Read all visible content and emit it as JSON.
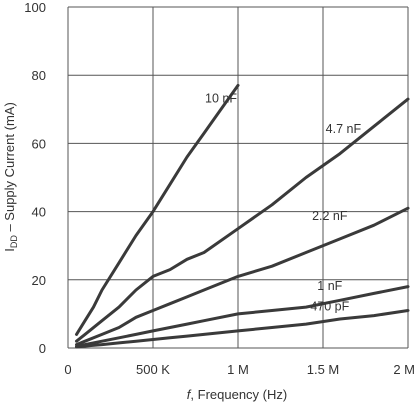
{
  "chart_data": {
    "type": "line",
    "xlabel_italic": "f",
    "xlabel_rest": ", Frequency (Hz)",
    "ylabel_main": "I",
    "ylabel_sub": "DD",
    "ylabel_rest": " – Supply Current (mA)",
    "xlim": [
      0,
      2000000
    ],
    "ylim": [
      0,
      100
    ],
    "x_ticks": [
      {
        "value": 0,
        "label": "0"
      },
      {
        "value": 500000,
        "label": "500 K"
      },
      {
        "value": 1000000,
        "label": "1 M"
      },
      {
        "value": 1500000,
        "label": "1.5 M"
      },
      {
        "value": 2000000,
        "label": "2 M"
      }
    ],
    "y_ticks": [
      {
        "value": 0,
        "label": "0"
      },
      {
        "value": 20,
        "label": "20"
      },
      {
        "value": 40,
        "label": "40"
      },
      {
        "value": 60,
        "label": "60"
      },
      {
        "value": 80,
        "label": "80"
      },
      {
        "value": 100,
        "label": "100"
      }
    ],
    "grid": true,
    "series": [
      {
        "name": "10 nF",
        "x": [
          50000,
          100000,
          150000,
          200000,
          300000,
          400000,
          500000,
          600000,
          700000,
          800000,
          900000,
          1000000
        ],
        "y": [
          4,
          8,
          12,
          17,
          25,
          33,
          40,
          48,
          56,
          63,
          70,
          77
        ]
      },
      {
        "name": "4.7 nF",
        "x": [
          50000,
          100000,
          200000,
          300000,
          400000,
          500000,
          600000,
          700000,
          800000,
          1000000,
          1200000,
          1400000,
          1600000,
          1800000,
          2000000
        ],
        "y": [
          2,
          4,
          8,
          12,
          17,
          21,
          23,
          26,
          28,
          35,
          42,
          50,
          57,
          65,
          73
        ]
      },
      {
        "name": "2.2 nF",
        "x": [
          50000,
          100000,
          200000,
          300000,
          400000,
          500000,
          600000,
          700000,
          800000,
          1000000,
          1200000,
          1400000,
          1600000,
          1800000,
          2000000
        ],
        "y": [
          1,
          2,
          4,
          6,
          9,
          11,
          13,
          15,
          17,
          21,
          24,
          28,
          32,
          36,
          41
        ]
      },
      {
        "name": "1 nF",
        "x": [
          50000,
          100000,
          200000,
          300000,
          400000,
          500000,
          600000,
          700000,
          800000,
          1000000,
          1200000,
          1400000,
          1600000,
          1800000,
          2000000
        ],
        "y": [
          0.5,
          1,
          2,
          3,
          4,
          5,
          6,
          7,
          8,
          10,
          11,
          12,
          14,
          16,
          18
        ]
      },
      {
        "name": "470 pF",
        "x": [
          50000,
          100000,
          200000,
          300000,
          400000,
          500000,
          600000,
          700000,
          800000,
          1000000,
          1200000,
          1400000,
          1600000,
          1800000,
          2000000
        ],
        "y": [
          0.3,
          0.6,
          1,
          1.5,
          2,
          2.5,
          3,
          3.5,
          4,
          5,
          6,
          7,
          8.5,
          9.5,
          11
        ]
      }
    ],
    "series_label_anchor": [
      {
        "x": 900000,
        "y": 72
      },
      {
        "x": 1620000,
        "y": 63
      },
      {
        "x": 1540000,
        "y": 37.5
      },
      {
        "x": 1540000,
        "y": 17
      },
      {
        "x": 1540000,
        "y": 11
      }
    ]
  }
}
